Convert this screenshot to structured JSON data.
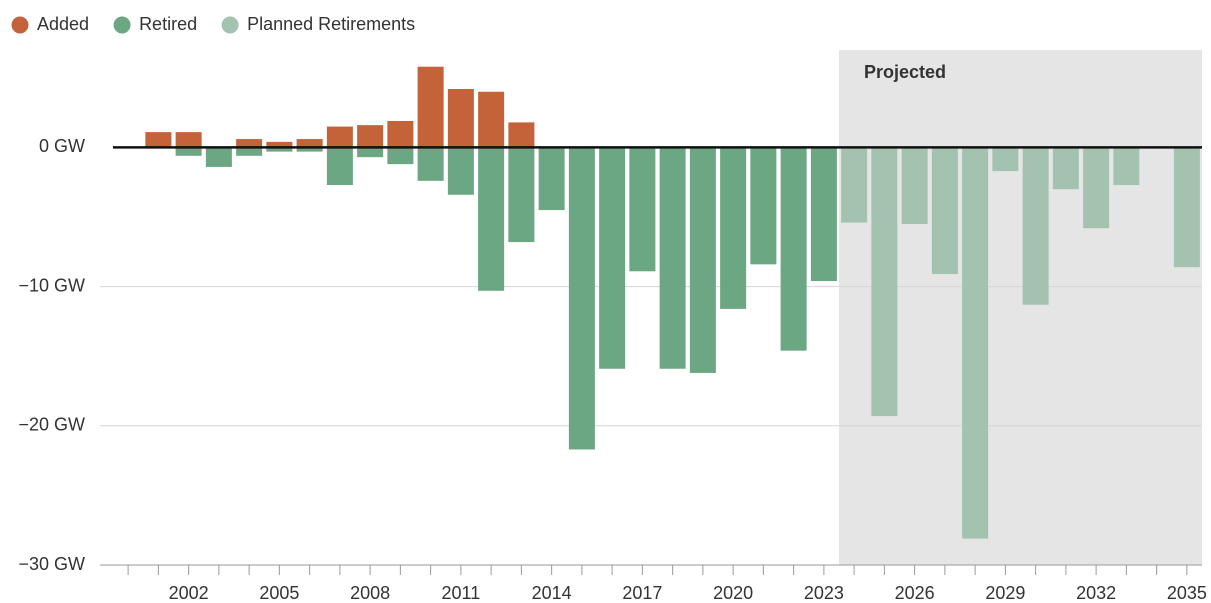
{
  "chart_data": {
    "type": "bar",
    "legend": "top-left",
    "x": [
      2001,
      2002,
      2003,
      2004,
      2005,
      2006,
      2007,
      2008,
      2009,
      2010,
      2011,
      2012,
      2013,
      2014,
      2015,
      2016,
      2017,
      2018,
      2019,
      2020,
      2021,
      2022,
      2023,
      2024,
      2025,
      2026,
      2027,
      2028,
      2029,
      2030,
      2031,
      2032,
      2033,
      2034,
      2035
    ],
    "series": [
      {
        "name": "Added",
        "color": "#c4623a",
        "values": [
          1.1,
          1.1,
          null,
          0.6,
          0.4,
          0.6,
          1.5,
          1.6,
          1.9,
          5.8,
          4.2,
          4.0,
          1.8,
          null,
          null,
          null,
          null,
          null,
          null,
          null,
          null,
          null,
          null,
          null,
          null,
          null,
          null,
          null,
          null,
          null,
          null,
          null,
          null,
          null,
          null
        ]
      },
      {
        "name": "Retired",
        "color": "#6aa782",
        "values": [
          null,
          -0.6,
          -1.4,
          -0.6,
          -0.3,
          -0.3,
          -2.7,
          -0.7,
          -1.2,
          -2.4,
          -3.4,
          -10.3,
          -6.8,
          -4.5,
          -21.7,
          -15.9,
          -8.9,
          -15.9,
          -16.2,
          -11.6,
          -8.4,
          -14.6,
          -9.6,
          null,
          null,
          null,
          null,
          null,
          null,
          null,
          null,
          null,
          null,
          null,
          null
        ]
      },
      {
        "name": "Planned Retirements",
        "color": "#a3c2b0",
        "values": [
          null,
          null,
          null,
          null,
          null,
          null,
          null,
          null,
          null,
          null,
          null,
          null,
          null,
          null,
          null,
          null,
          null,
          null,
          null,
          null,
          null,
          null,
          null,
          -5.4,
          -19.3,
          -5.5,
          -9.1,
          -28.1,
          -1.7,
          -11.3,
          -3.0,
          -5.8,
          -2.7,
          null,
          -8.6
        ]
      }
    ],
    "xlim": [
      1999.5,
      2035.5
    ],
    "xticks": [
      2002,
      2005,
      2008,
      2011,
      2014,
      2017,
      2020,
      2023,
      2026,
      2029,
      2032,
      2035
    ],
    "xminor": [
      2000,
      2001,
      2002,
      2003,
      2004,
      2005,
      2006,
      2007,
      2008,
      2009,
      2010,
      2011,
      2012,
      2013,
      2014,
      2015,
      2016,
      2017,
      2018,
      2019,
      2020,
      2021,
      2022,
      2023,
      2024,
      2025,
      2026,
      2027,
      2028,
      2029,
      2030,
      2031,
      2032,
      2033,
      2034,
      2035
    ],
    "ylim": [
      -30,
      7
    ],
    "yticks": [
      {
        "value": 0,
        "label": "0 GW"
      },
      {
        "value": -10,
        "label": "−10 GW"
      },
      {
        "value": -20,
        "label": "−20 GW"
      },
      {
        "value": -30,
        "label": "−30 GW"
      }
    ],
    "grid": true,
    "shaded_region": {
      "label": "Projected",
      "x": [
        2023.5,
        2035.5
      ],
      "color": "#e5e5e5"
    }
  }
}
